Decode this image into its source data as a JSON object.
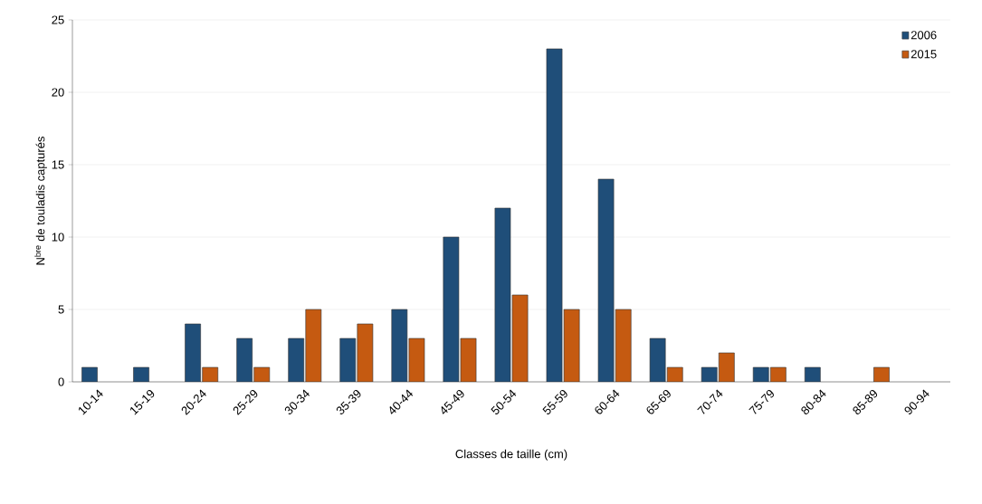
{
  "chart_data": {
    "type": "bar",
    "xlabel": "Classes de taille (cm)",
    "ylabel": "N$^{bre}$ de touladis capturés",
    "categories": [
      "10-14",
      "15-19",
      "20-24",
      "25-29",
      "30-34",
      "35-39",
      "40-44",
      "45-49",
      "50-54",
      "55-59",
      "60-64",
      "65-69",
      "70-74",
      "75-79",
      "80-84",
      "85-89",
      "90-94"
    ],
    "series": [
      {
        "name": "2006",
        "color": "#1f4e79",
        "values": [
          1,
          1,
          4,
          3,
          3,
          3,
          5,
          10,
          12,
          23,
          14,
          3,
          1,
          1,
          1,
          0,
          0
        ]
      },
      {
        "name": "2015",
        "color": "#c55a11",
        "values": [
          0,
          0,
          1,
          1,
          5,
          4,
          3,
          3,
          6,
          5,
          5,
          1,
          2,
          1,
          0,
          1,
          0
        ]
      }
    ],
    "ylim": [
      0,
      25
    ],
    "yticks": [
      0,
      5,
      10,
      15,
      20,
      25
    ],
    "grid": "y",
    "legend": "top right"
  }
}
